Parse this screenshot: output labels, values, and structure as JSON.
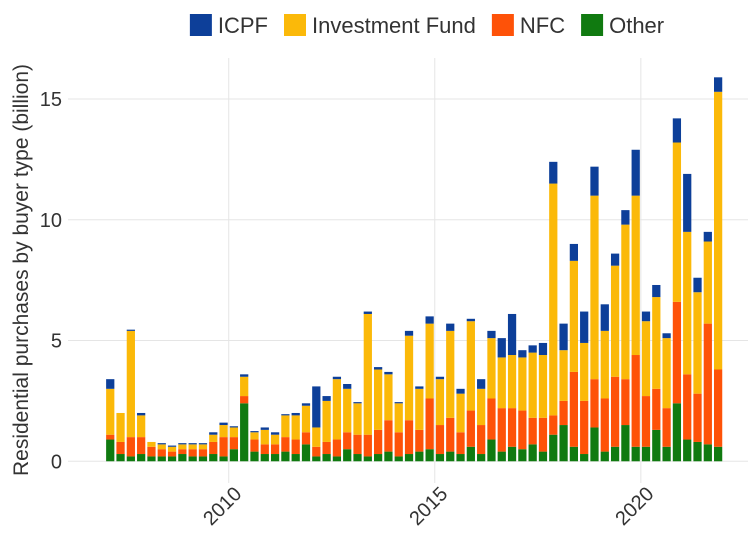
{
  "chart_data": {
    "type": "stacked-bar",
    "y_label": "Residential purchases by buyer type (billion)",
    "x": [
      2007.125,
      2007.375,
      2007.625,
      2007.875,
      2008.125,
      2008.375,
      2008.625,
      2008.875,
      2009.125,
      2009.375,
      2009.625,
      2009.875,
      2010.125,
      2010.375,
      2010.625,
      2010.875,
      2011.125,
      2011.375,
      2011.625,
      2011.875,
      2012.125,
      2012.375,
      2012.625,
      2012.875,
      2013.125,
      2013.375,
      2013.625,
      2013.875,
      2014.125,
      2014.375,
      2014.625,
      2014.875,
      2015.125,
      2015.375,
      2015.625,
      2015.875,
      2016.125,
      2016.375,
      2016.625,
      2016.875,
      2017.125,
      2017.375,
      2017.625,
      2017.875,
      2018.125,
      2018.375,
      2018.625,
      2018.875,
      2019.125,
      2019.375,
      2019.625,
      2019.875,
      2020.125,
      2020.375,
      2020.625,
      2020.875,
      2021.125,
      2021.375,
      2021.625,
      2021.875
    ],
    "series": [
      {
        "name": "ICPF",
        "color": "#0d3f99",
        "values": [
          0.4,
          0,
          0.05,
          0.1,
          0,
          0.05,
          0.05,
          0.05,
          0.05,
          0.05,
          0.1,
          0.1,
          0.05,
          0.1,
          0.05,
          0.1,
          0.1,
          0.05,
          0.1,
          0.1,
          1.7,
          0.2,
          0.1,
          0.2,
          0.05,
          0.1,
          0.1,
          0.1,
          0.05,
          0.2,
          0.1,
          0.3,
          0.1,
          0.3,
          0.2,
          0.1,
          0.4,
          0.3,
          0.8,
          1.7,
          0.3,
          0.3,
          0.5,
          0.9,
          1.1,
          0.7,
          1.3,
          1.2,
          1.1,
          0.5,
          0.6,
          1.9,
          0.4,
          0.5,
          0.2,
          1.0,
          2.4,
          0.6,
          0.4,
          0.6
        ]
      },
      {
        "name": "Investment Fund",
        "color": "#fbb909",
        "values": [
          1.9,
          1.2,
          4.4,
          0.9,
          0.2,
          0.2,
          0.2,
          0.2,
          0.2,
          0.2,
          0.3,
          0.5,
          0.4,
          0.8,
          0.3,
          0.6,
          0.4,
          0.9,
          1.0,
          1.1,
          0.8,
          1.7,
          2.5,
          1.8,
          1.3,
          5.0,
          2.5,
          1.9,
          1.2,
          3.5,
          1.7,
          3.1,
          1.9,
          3.6,
          1.6,
          3.7,
          1.5,
          2.5,
          2.1,
          2.2,
          2.2,
          2.7,
          2.6,
          9.6,
          2.1,
          4.6,
          2.4,
          7.6,
          2.8,
          4.6,
          6.4,
          6.6,
          3.1,
          3.8,
          2.9,
          6.6,
          5.9,
          4.2,
          3.4,
          11.5
        ]
      },
      {
        "name": "NFC",
        "color": "#fe5208",
        "values": [
          0.2,
          0.5,
          0.8,
          0.7,
          0.4,
          0.3,
          0.2,
          0.2,
          0.3,
          0.3,
          0.5,
          0.8,
          0.5,
          0.3,
          0.5,
          0.4,
          0.4,
          0.6,
          0.6,
          0.5,
          0.4,
          0.5,
          0.7,
          0.7,
          0.8,
          0.9,
          1.0,
          1.3,
          1.0,
          1.4,
          0.9,
          2.1,
          1.2,
          1.4,
          0.9,
          1.5,
          1.2,
          1.7,
          1.8,
          1.6,
          1.6,
          1.1,
          1.4,
          0.8,
          1.0,
          3.1,
          2.2,
          2.0,
          2.2,
          2.9,
          1.9,
          3.8,
          2.1,
          1.7,
          1.6,
          4.2,
          2.7,
          2.0,
          5.0,
          3.2
        ]
      },
      {
        "name": "Other",
        "color": "#107a10",
        "values": [
          0.9,
          0.3,
          0.2,
          0.3,
          0.2,
          0.2,
          0.2,
          0.3,
          0.2,
          0.2,
          0.3,
          0.2,
          0.5,
          2.4,
          0.4,
          0.3,
          0.3,
          0.4,
          0.3,
          0.7,
          0.2,
          0.3,
          0.2,
          0.5,
          0.3,
          0.2,
          0.3,
          0.4,
          0.2,
          0.3,
          0.4,
          0.5,
          0.3,
          0.4,
          0.3,
          0.6,
          0.3,
          0.9,
          0.4,
          0.6,
          0.5,
          0.7,
          0.4,
          1.1,
          1.5,
          0.6,
          0.3,
          1.4,
          0.4,
          0.6,
          1.5,
          0.6,
          0.6,
          1.3,
          0.6,
          2.4,
          0.9,
          0.8,
          0.7,
          0.6
        ]
      }
    ],
    "xlim": [
      2006.1,
      2022.6
    ],
    "xticks": [
      2010,
      2015,
      2020
    ],
    "ylim": [
      -0.9,
      16.7
    ],
    "yticks": [
      0,
      5,
      10,
      15
    ],
    "grid": true,
    "legend": "top"
  }
}
